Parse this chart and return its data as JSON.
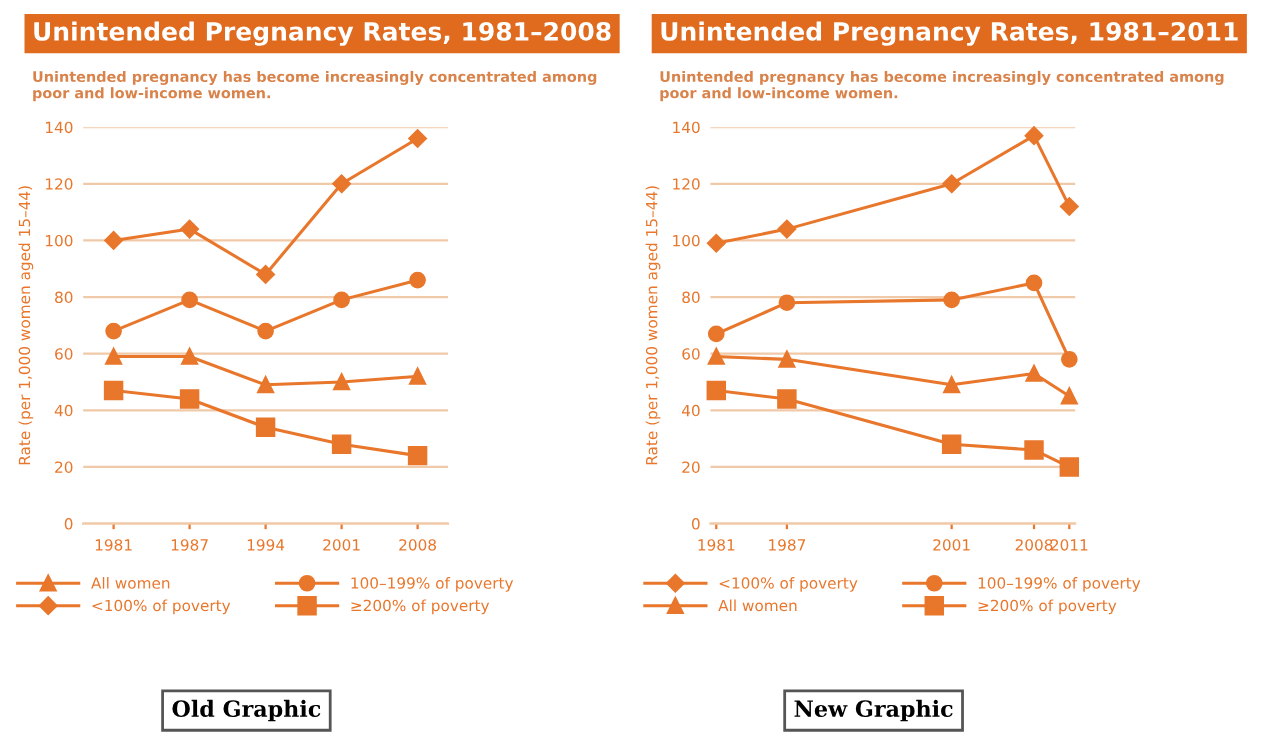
{
  "chart_data": [
    {
      "type": "line",
      "title": "Unintended Pregnancy Rates, 1981–2008",
      "subtitle": "Unintended pregnancy has become increasingly concentrated among\npoor and low-income women.",
      "ylabel": "Rate (per 1,000 women aged 15–44)",
      "annotations": [
        "Old Graphic"
      ],
      "categories": [
        "1981",
        "1987",
        "1994",
        "2001",
        "2008"
      ],
      "ylim": [
        0,
        140
      ],
      "yticks": [
        0,
        20,
        40,
        60,
        80,
        100,
        120,
        140
      ],
      "grid": "y",
      "legend": "bottom",
      "line_style": "solid",
      "series": [
        {
          "name": "All women",
          "color": "#e8762b",
          "marker": "triangle",
          "values": [
            59,
            59,
            49,
            50,
            52
          ]
        },
        {
          "name": "<100% of poverty",
          "color": "#e8762b",
          "marker": "diamond",
          "values": [
            100,
            104,
            88,
            120,
            136
          ]
        },
        {
          "name": "100–199% of poverty",
          "color": "#e8762b",
          "marker": "circle",
          "values": [
            68,
            79,
            68,
            79,
            86
          ]
        },
        {
          "name": "≥200% of poverty",
          "color": "#e8762b",
          "marker": "square",
          "values": [
            47,
            44,
            34,
            28,
            24
          ]
        }
      ]
    },
    {
      "type": "line",
      "title": "Unintended Pregnancy Rates, 1981–2011",
      "subtitle": "Unintended pregnancy has become increasingly concentrated among\npoor and low-income women.",
      "ylabel": "Rate (per 1,000 women aged 15–44)",
      "annotations": [
        "New Graphic"
      ],
      "x": [
        1981,
        1987,
        2001,
        2008,
        2011
      ],
      "xlim": [
        1980.5,
        2011.5
      ],
      "xticks": [
        1981,
        1987,
        2001,
        2008,
        2011
      ],
      "ylim": [
        0,
        140
      ],
      "yticks": [
        0,
        20,
        40,
        60,
        80,
        100,
        120,
        140
      ],
      "grid": "y",
      "legend": "bottom",
      "line_style": "solid",
      "series": [
        {
          "name": "<100% of poverty",
          "color": "#e8762b",
          "marker": "diamond",
          "values": [
            99,
            104,
            120,
            137,
            112
          ]
        },
        {
          "name": "All women",
          "color": "#e8762b",
          "marker": "triangle",
          "values": [
            59,
            58,
            49,
            53,
            45
          ]
        },
        {
          "name": "100–199% of poverty",
          "color": "#e8762b",
          "marker": "circle",
          "values": [
            67,
            78,
            79,
            85,
            58
          ]
        },
        {
          "name": "≥200% of poverty",
          "color": "#e8762b",
          "marker": "square",
          "values": [
            47,
            44,
            28,
            26,
            20
          ]
        }
      ]
    }
  ]
}
